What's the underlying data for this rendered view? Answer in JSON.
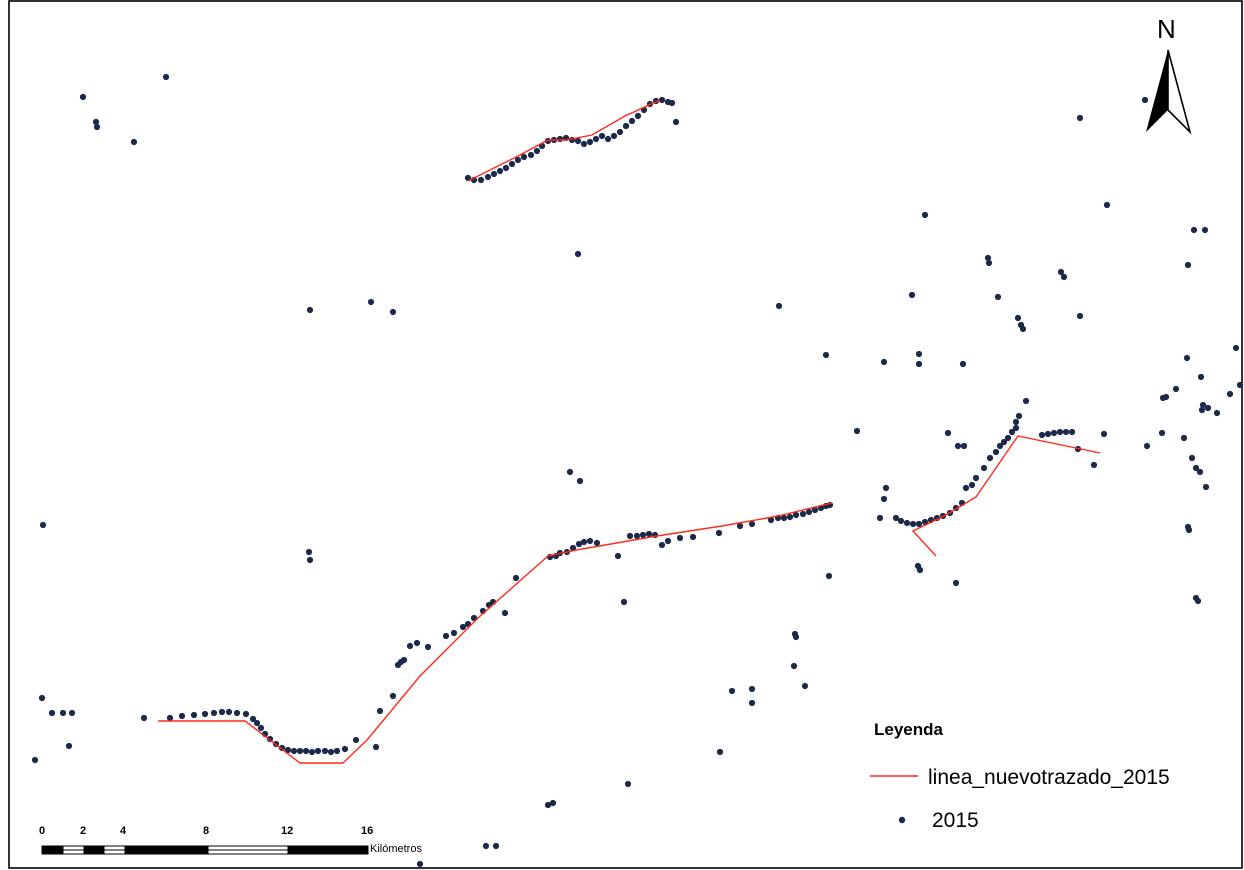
{
  "legend": {
    "title": "Leyenda",
    "items": [
      {
        "label": "linea_nuevotrazado_2015",
        "symbol": "line",
        "color": "#ff2a1a"
      },
      {
        "label": "2015",
        "symbol": "point",
        "color": "#1b2a4a"
      }
    ]
  },
  "north_arrow": {
    "label": "N"
  },
  "scale_bar": {
    "ticks": [
      "0",
      "2",
      "4",
      "8",
      "12",
      "16"
    ],
    "unit": "Kilómetros"
  },
  "colors": {
    "points": "#1b2a4a",
    "route": "#ff2a1a",
    "frame": "#000000",
    "background": "#ffffff"
  }
}
